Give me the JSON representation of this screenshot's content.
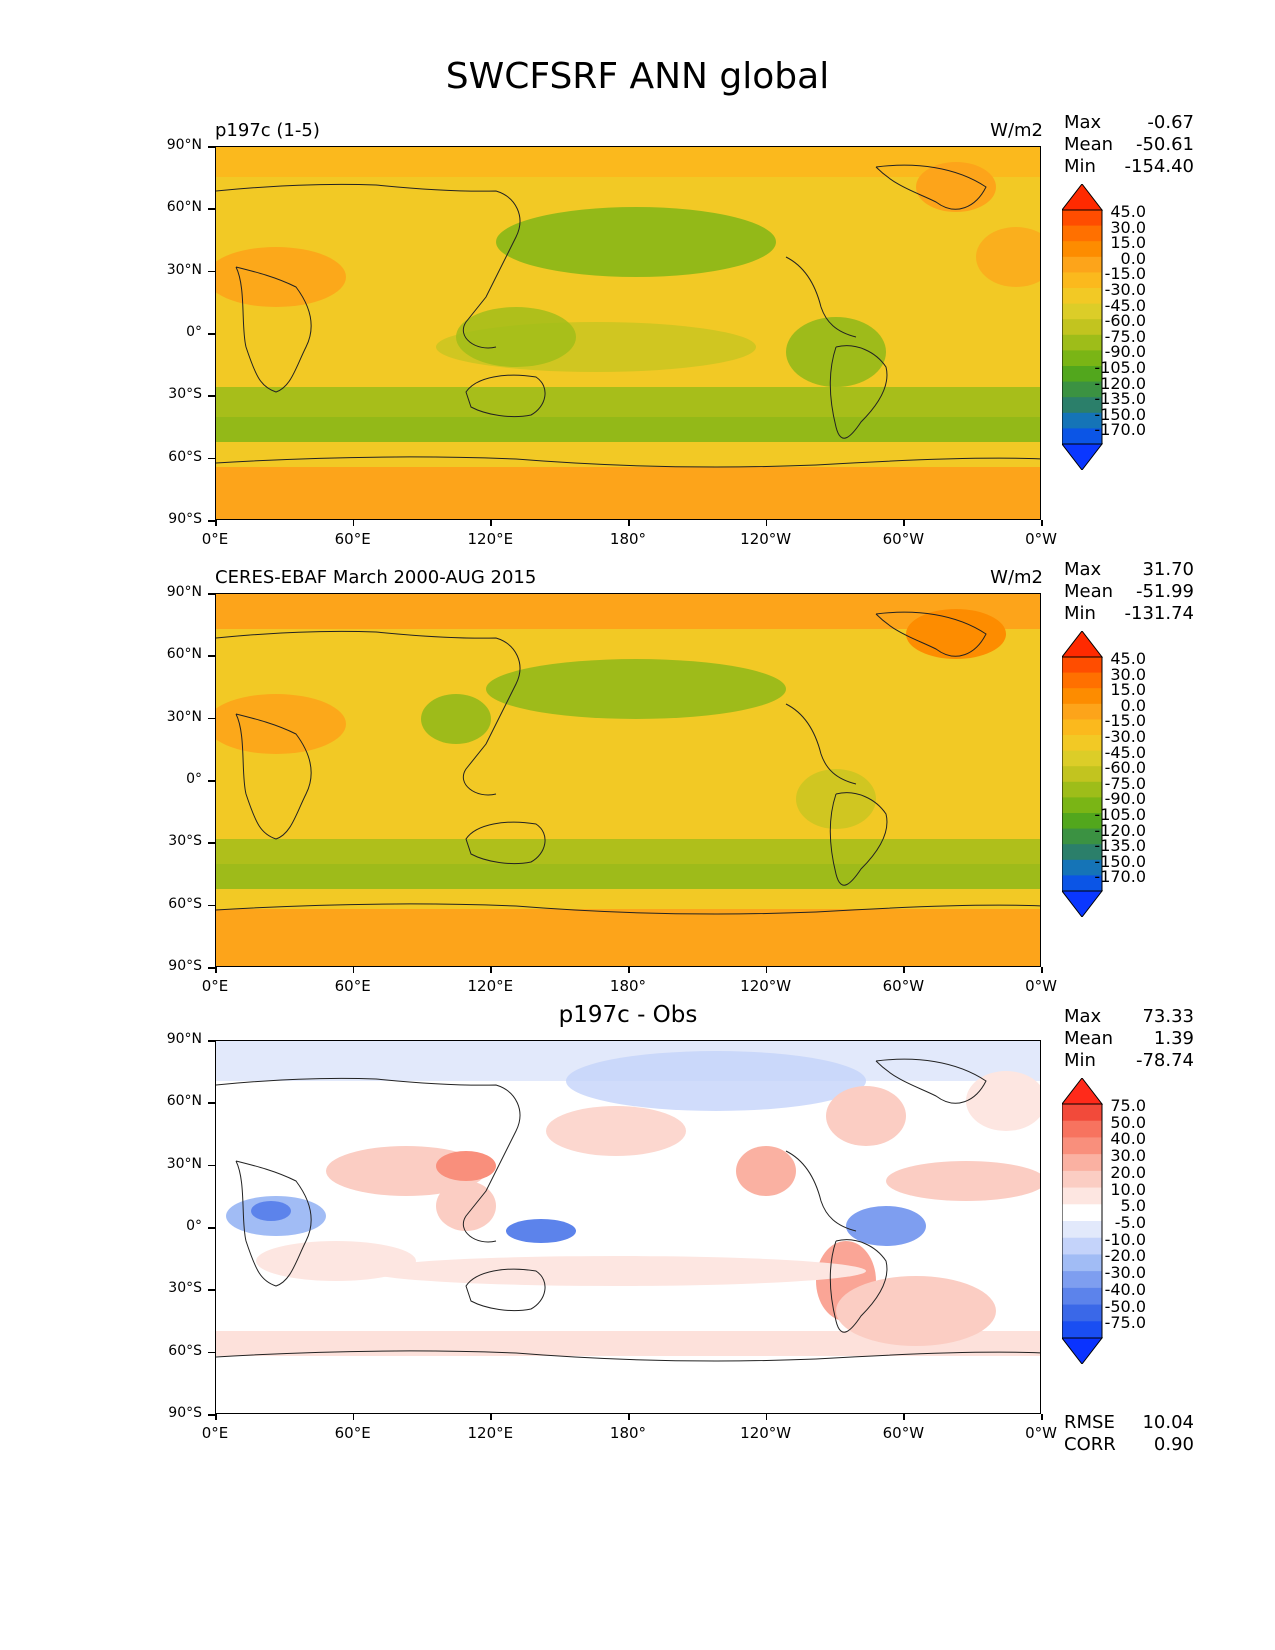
{
  "title": "SWCFSRF ANN global",
  "axes": {
    "lat_ticks": [
      "90°N",
      "60°N",
      "30°N",
      "0°",
      "30°S",
      "60°S",
      "90°S"
    ],
    "lon_ticks": [
      "0°E",
      "60°E",
      "120°E",
      "180°",
      "120°W",
      "60°W",
      "0°W"
    ]
  },
  "panels": [
    {
      "title_left": "p197c (1-5)",
      "units": "W/m2",
      "stats": [
        {
          "label": "Max",
          "value": "-0.67"
        },
        {
          "label": "Mean",
          "value": "-50.61"
        },
        {
          "label": "Min",
          "value": "-154.40"
        }
      ],
      "colorbar_levels": [
        "45.0",
        "30.0",
        "15.0",
        "0.0",
        "-15.0",
        "-30.0",
        "-45.0",
        "-60.0",
        "-75.0",
        "-90.0",
        "-105.0",
        "-120.0",
        "-135.0",
        "-150.0",
        "-170.0"
      ],
      "colorbar_colors": [
        "#ff2a00",
        "#ff4d00",
        "#ff7000",
        "#fd8c00",
        "#fda41a",
        "#fbb91d",
        "#f2c925",
        "#dccd28",
        "#c2c41f",
        "#9ebd19",
        "#7ab515",
        "#52a71d",
        "#3b9242",
        "#2b7f6a",
        "#1574b7",
        "#0b55e6",
        "#0a37ff"
      ]
    },
    {
      "title_left": "CERES-EBAF March 2000-AUG 2015",
      "units": "W/m2",
      "stats": [
        {
          "label": "Max",
          "value": "31.70"
        },
        {
          "label": "Mean",
          "value": "-51.99"
        },
        {
          "label": "Min",
          "value": "-131.74"
        }
      ],
      "colorbar_levels": [
        "45.0",
        "30.0",
        "15.0",
        "0.0",
        "-15.0",
        "-30.0",
        "-45.0",
        "-60.0",
        "-75.0",
        "-90.0",
        "-105.0",
        "-120.0",
        "-135.0",
        "-150.0",
        "-170.0"
      ],
      "colorbar_colors": [
        "#ff2a00",
        "#ff4d00",
        "#ff7000",
        "#fd8c00",
        "#fda41a",
        "#fbb91d",
        "#f2c925",
        "#dccd28",
        "#c2c41f",
        "#9ebd19",
        "#7ab515",
        "#52a71d",
        "#3b9242",
        "#2b7f6a",
        "#1574b7",
        "#0b55e6",
        "#0a37ff"
      ]
    },
    {
      "title_center": "p197c - Obs",
      "stats": [
        {
          "label": "Max",
          "value": "73.33"
        },
        {
          "label": "Mean",
          "value": "1.39"
        },
        {
          "label": "Min",
          "value": "-78.74"
        }
      ],
      "bottom_stats": [
        {
          "label": "RMSE",
          "value": "10.04"
        },
        {
          "label": "CORR",
          "value": "0.90"
        }
      ],
      "colorbar_levels": [
        "75.0",
        "50.0",
        "40.0",
        "30.0",
        "20.0",
        "10.0",
        "5.0",
        "-5.0",
        "-10.0",
        "-20.0",
        "-30.0",
        "-40.0",
        "-50.0",
        "-75.0"
      ],
      "colorbar_colors": [
        "#ff2a1a",
        "#f24a3a",
        "#f7735f",
        "#f98f7c",
        "#fab1a2",
        "#fbcdc3",
        "#fde6e1",
        "#ffffff",
        "#e2e9fb",
        "#c4d3fa",
        "#a1bcf5",
        "#7e9ef0",
        "#5c83eb",
        "#3a68e8",
        "#1a4ef2",
        "#0a33ff"
      ]
    }
  ]
}
